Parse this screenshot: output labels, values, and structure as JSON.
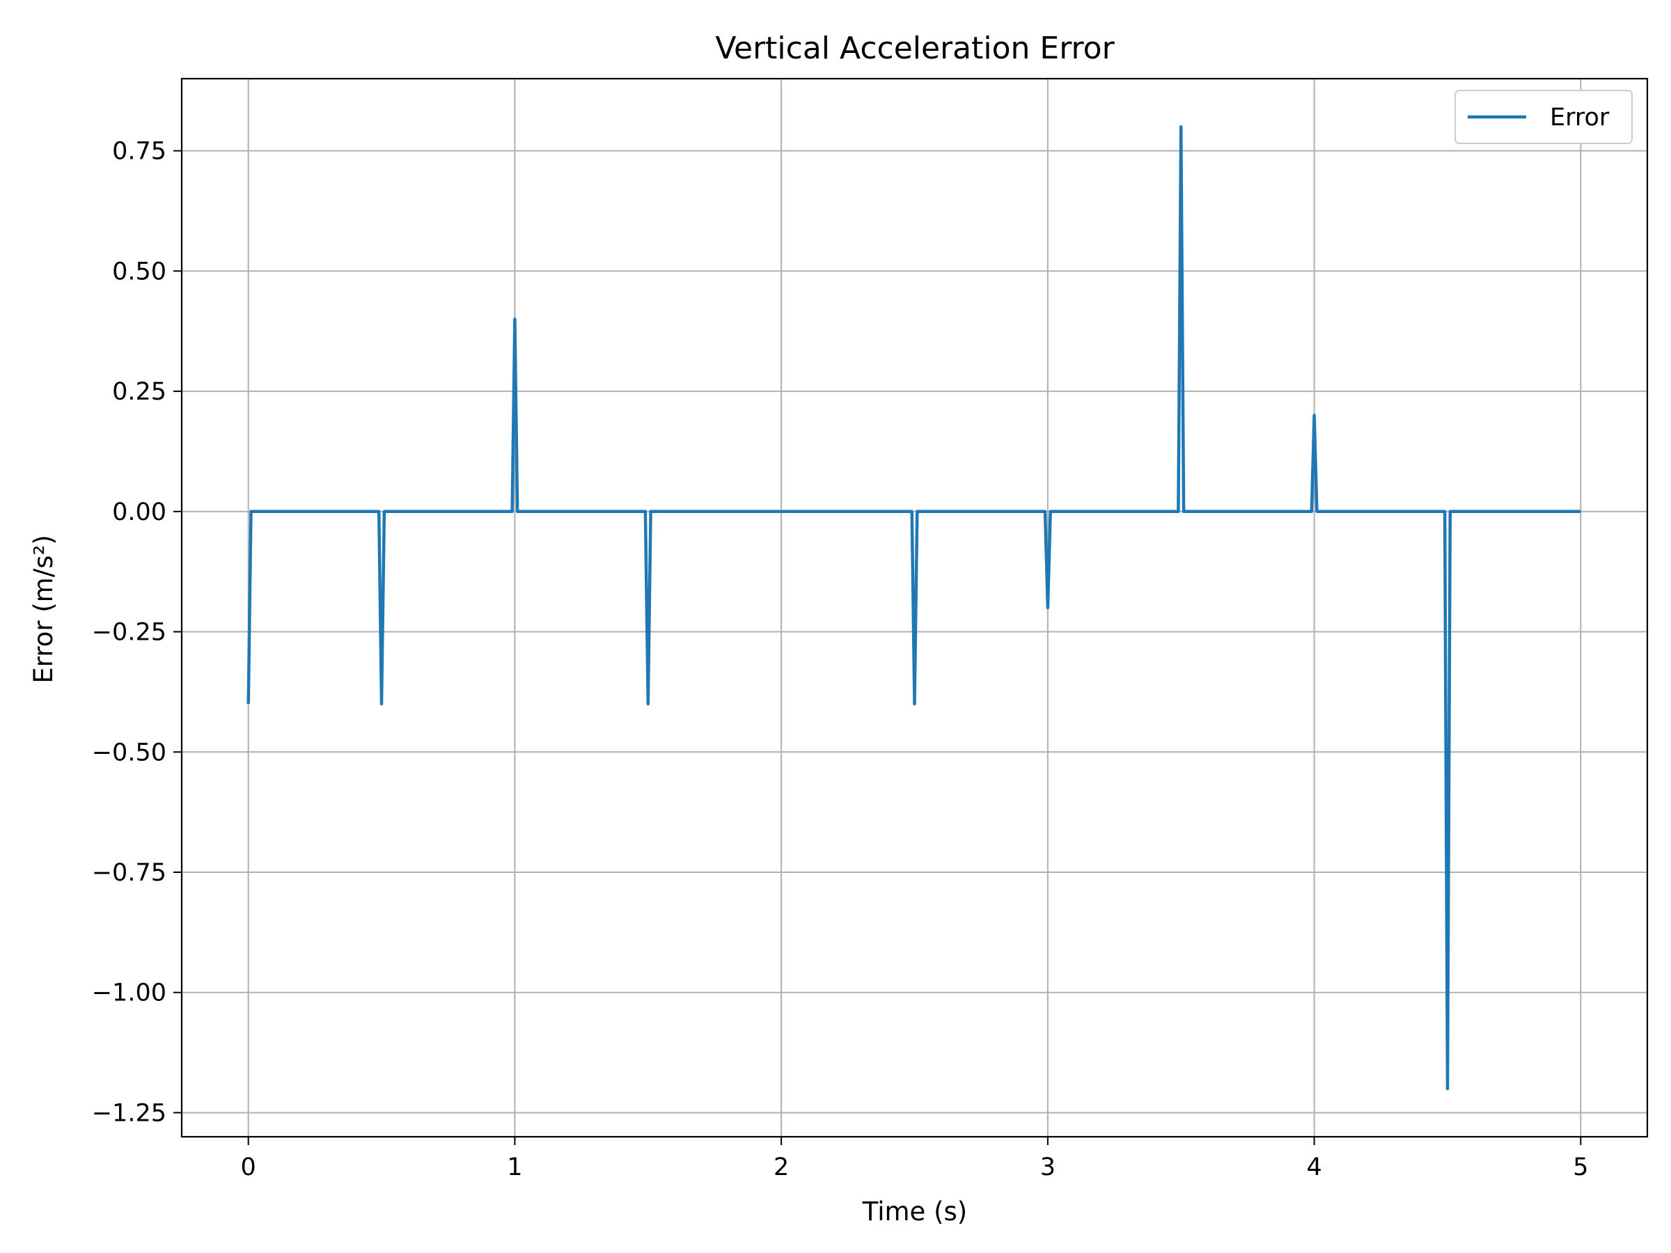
{
  "chart_data": {
    "type": "line",
    "title": "Vertical Acceleration Error",
    "xlabel": "Time (s)",
    "ylabel": "Error (m/s²)",
    "xlim": [
      -0.25,
      5.25
    ],
    "ylim": [
      -1.3,
      0.9
    ],
    "xticks": [
      0,
      1,
      2,
      3,
      4,
      5
    ],
    "xtick_labels": [
      "0",
      "1",
      "2",
      "3",
      "4",
      "5"
    ],
    "yticks": [
      0.75,
      0.5,
      0.25,
      0.0,
      -0.25,
      -0.5,
      -0.75,
      -1.0,
      -1.25
    ],
    "ytick_labels": [
      "0.75",
      "0.50",
      "0.25",
      "0.00",
      "−0.25",
      "−0.50",
      "−0.75",
      "−1.00",
      "−1.25"
    ],
    "grid": true,
    "legend": {
      "position": "top-right"
    },
    "series": [
      {
        "name": "Error",
        "color": "#1f77b4",
        "x": [
          0,
          0.01,
          0.49,
          0.5,
          0.51,
          0.99,
          1.0,
          1.01,
          1.49,
          1.5,
          1.51,
          2.49,
          2.5,
          2.51,
          2.99,
          3.0,
          3.01,
          3.49,
          3.5,
          3.51,
          3.99,
          4.0,
          4.01,
          4.49,
          4.5,
          4.51,
          5.0
        ],
        "y": [
          -0.4,
          0,
          0,
          -0.4,
          0,
          0,
          0.4,
          0,
          0,
          -0.4,
          0,
          0,
          -0.4,
          0,
          0,
          -0.2,
          0,
          0,
          0.8,
          0,
          0,
          0.2,
          0,
          0,
          -1.2,
          0,
          0
        ]
      }
    ]
  }
}
